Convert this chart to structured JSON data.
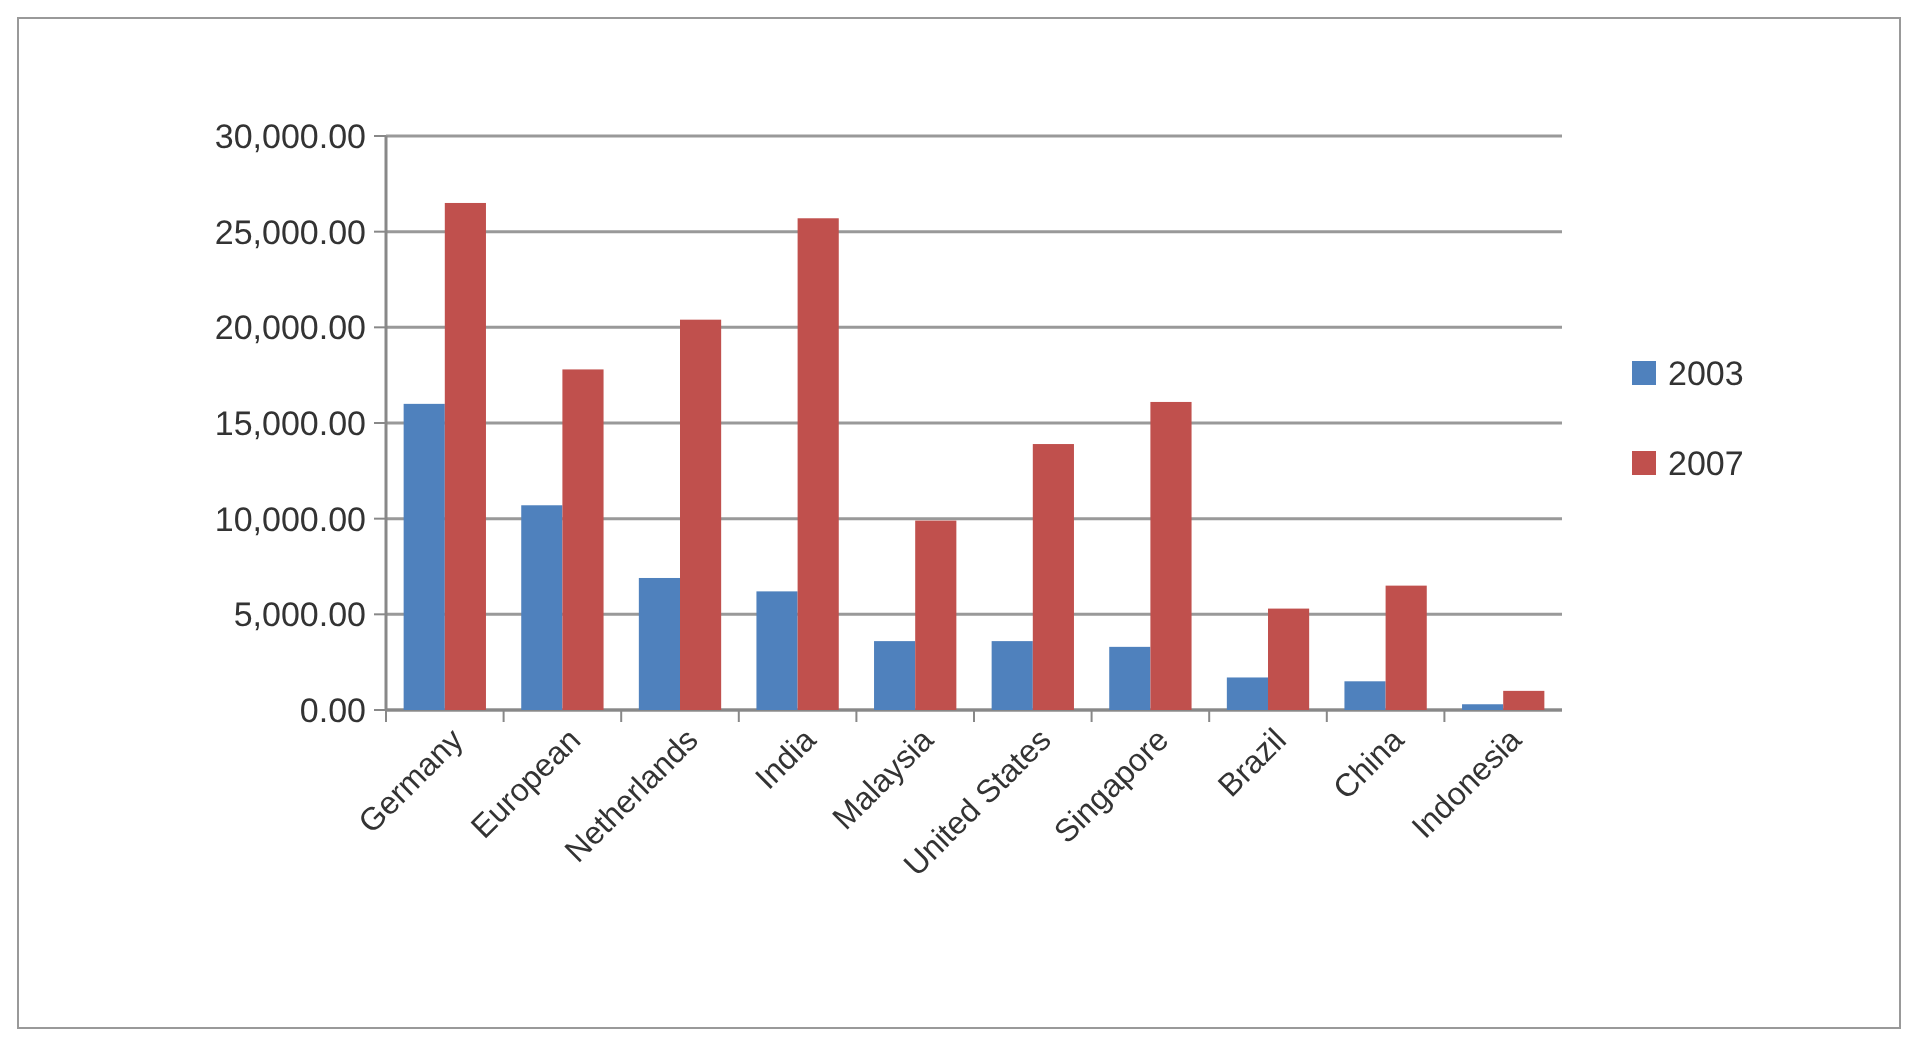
{
  "chart_data": {
    "type": "bar",
    "categories": [
      "Germany",
      "European",
      "Netherlands",
      "India",
      "Malaysia",
      "United States",
      "Singapore",
      "Brazil",
      "China",
      "Indonesia"
    ],
    "series": [
      {
        "name": "2003",
        "color": "#4f81bd",
        "values": [
          16000,
          10700,
          6900,
          6200,
          3600,
          3600,
          3300,
          1700,
          1500,
          300
        ]
      },
      {
        "name": "2007",
        "color": "#c0504d",
        "values": [
          26500,
          17800,
          20400,
          25700,
          9900,
          13900,
          16100,
          5300,
          6500,
          1000
        ]
      }
    ],
    "ylim": [
      0,
      30000
    ],
    "yticks": [
      {
        "value": 0,
        "label": "0.00"
      },
      {
        "value": 5000,
        "label": "5,000.00"
      },
      {
        "value": 10000,
        "label": "10,000.00"
      },
      {
        "value": 15000,
        "label": "15,000.00"
      },
      {
        "value": 20000,
        "label": "20,000.00"
      },
      {
        "value": 25000,
        "label": "25,000.00"
      },
      {
        "value": 30000,
        "label": "30,000.00"
      }
    ],
    "grid": "y",
    "legend": "right"
  }
}
